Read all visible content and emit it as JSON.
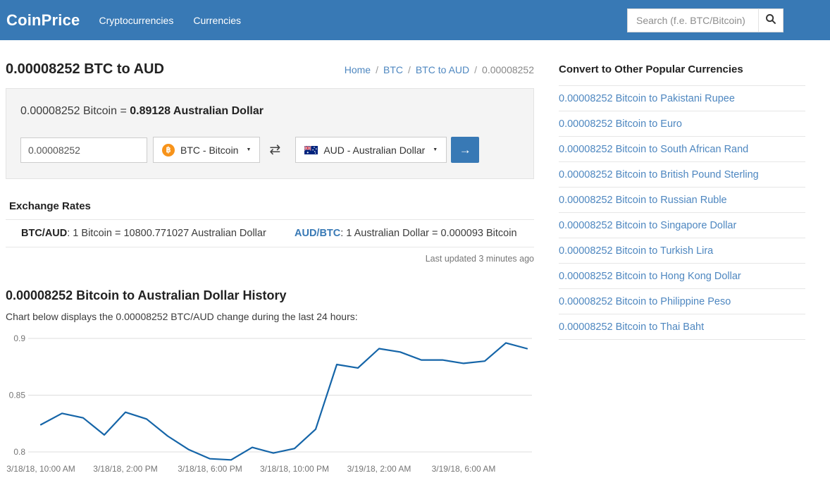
{
  "header": {
    "brand": "CoinPrice",
    "nav": [
      {
        "label": "Cryptocurrencies"
      },
      {
        "label": "Currencies"
      }
    ],
    "search": {
      "placeholder": "Search (f.e. BTC/Bitcoin)"
    }
  },
  "page": {
    "title": "0.00008252 BTC to AUD",
    "breadcrumb": [
      {
        "label": "Home",
        "link": true
      },
      {
        "label": "BTC",
        "link": true
      },
      {
        "label": "BTC to AUD",
        "link": true
      },
      {
        "label": "0.00008252",
        "link": false
      }
    ]
  },
  "converter": {
    "equation_left": "0.00008252 Bitcoin = ",
    "equation_right": "0.89128 Australian Dollar",
    "amount_value": "0.00008252",
    "from_currency": "BTC - Bitcoin",
    "to_currency": "AUD - Australian Dollar"
  },
  "icons": {
    "bitcoin_symbol": "฿",
    "swap": "⇄",
    "caret": "▼",
    "go_arrow": "→"
  },
  "exchange_rates": {
    "heading": "Exchange Rates",
    "pairs": [
      {
        "pair": "BTC/AUD",
        "text": ": 1 Bitcoin = 10800.771027 Australian Dollar",
        "link": false
      },
      {
        "pair": "AUD/BTC",
        "text": ": 1 Australian Dollar = 0.000093 Bitcoin",
        "link": true
      }
    ],
    "last_updated": "Last updated 3 minutes ago"
  },
  "history": {
    "heading": "0.00008252 Bitcoin to Australian Dollar History",
    "description": "Chart below displays the 0.00008252 BTC/AUD change during the last 24 hours:"
  },
  "chart_data": {
    "type": "line",
    "title": "0.00008252 BTC/AUD change during the last 24 hours",
    "x": [
      "3/18/18, 10:00 AM",
      "3/18/18, 11:00 AM",
      "3/18/18, 12:00 PM",
      "3/18/18, 1:00 PM",
      "3/18/18, 2:00 PM",
      "3/18/18, 3:00 PM",
      "3/18/18, 4:00 PM",
      "3/18/18, 5:00 PM",
      "3/18/18, 6:00 PM",
      "3/18/18, 7:00 PM",
      "3/18/18, 8:00 PM",
      "3/18/18, 9:00 PM",
      "3/18/18, 10:00 PM",
      "3/18/18, 11:00 PM",
      "3/19/18, 12:00 AM",
      "3/19/18, 1:00 AM",
      "3/19/18, 2:00 AM",
      "3/19/18, 3:00 AM",
      "3/19/18, 4:00 AM",
      "3/19/18, 5:00 AM",
      "3/19/18, 6:00 AM",
      "3/19/18, 7:00 AM",
      "3/19/18, 8:00 AM",
      "3/19/18, 9:00 AM"
    ],
    "values": [
      0.824,
      0.834,
      0.83,
      0.815,
      0.835,
      0.829,
      0.814,
      0.802,
      0.794,
      0.793,
      0.804,
      0.799,
      0.803,
      0.82,
      0.877,
      0.874,
      0.891,
      0.888,
      0.881,
      0.881,
      0.878,
      0.88,
      0.896,
      0.891
    ],
    "x_tick_indices": [
      0,
      4,
      8,
      12,
      16,
      20
    ],
    "x_tick_labels": [
      "3/18/18, 10:00 AM",
      "3/18/18, 2:00 PM",
      "3/18/18, 6:00 PM",
      "3/18/18, 10:00 PM",
      "3/19/18, 2:00 AM",
      "3/19/18, 6:00 AM"
    ],
    "y_ticks": [
      0.8,
      0.85,
      0.9
    ],
    "ylim": [
      0.79,
      0.91
    ],
    "xlabel": "",
    "ylabel": "",
    "grid": true,
    "legend": false,
    "line_color": "#1565a8"
  },
  "sidebar": {
    "heading": "Convert to Other Popular Currencies",
    "links": [
      "0.00008252 Bitcoin to Pakistani Rupee",
      "0.00008252 Bitcoin to Euro",
      "0.00008252 Bitcoin to South African Rand",
      "0.00008252 Bitcoin to British Pound Sterling",
      "0.00008252 Bitcoin to Russian Ruble",
      "0.00008252 Bitcoin to Singapore Dollar",
      "0.00008252 Bitcoin to Turkish Lira",
      "0.00008252 Bitcoin to Hong Kong Dollar",
      "0.00008252 Bitcoin to Philippine Peso",
      "0.00008252 Bitcoin to Thai Baht"
    ]
  },
  "colors": {
    "header_bg": "#3879b5",
    "accent": "#3879b5",
    "link": "#4e87c0",
    "bitcoin_orange": "#f7931a",
    "chart_line": "#1565a8",
    "grid_line": "#dddddd"
  }
}
